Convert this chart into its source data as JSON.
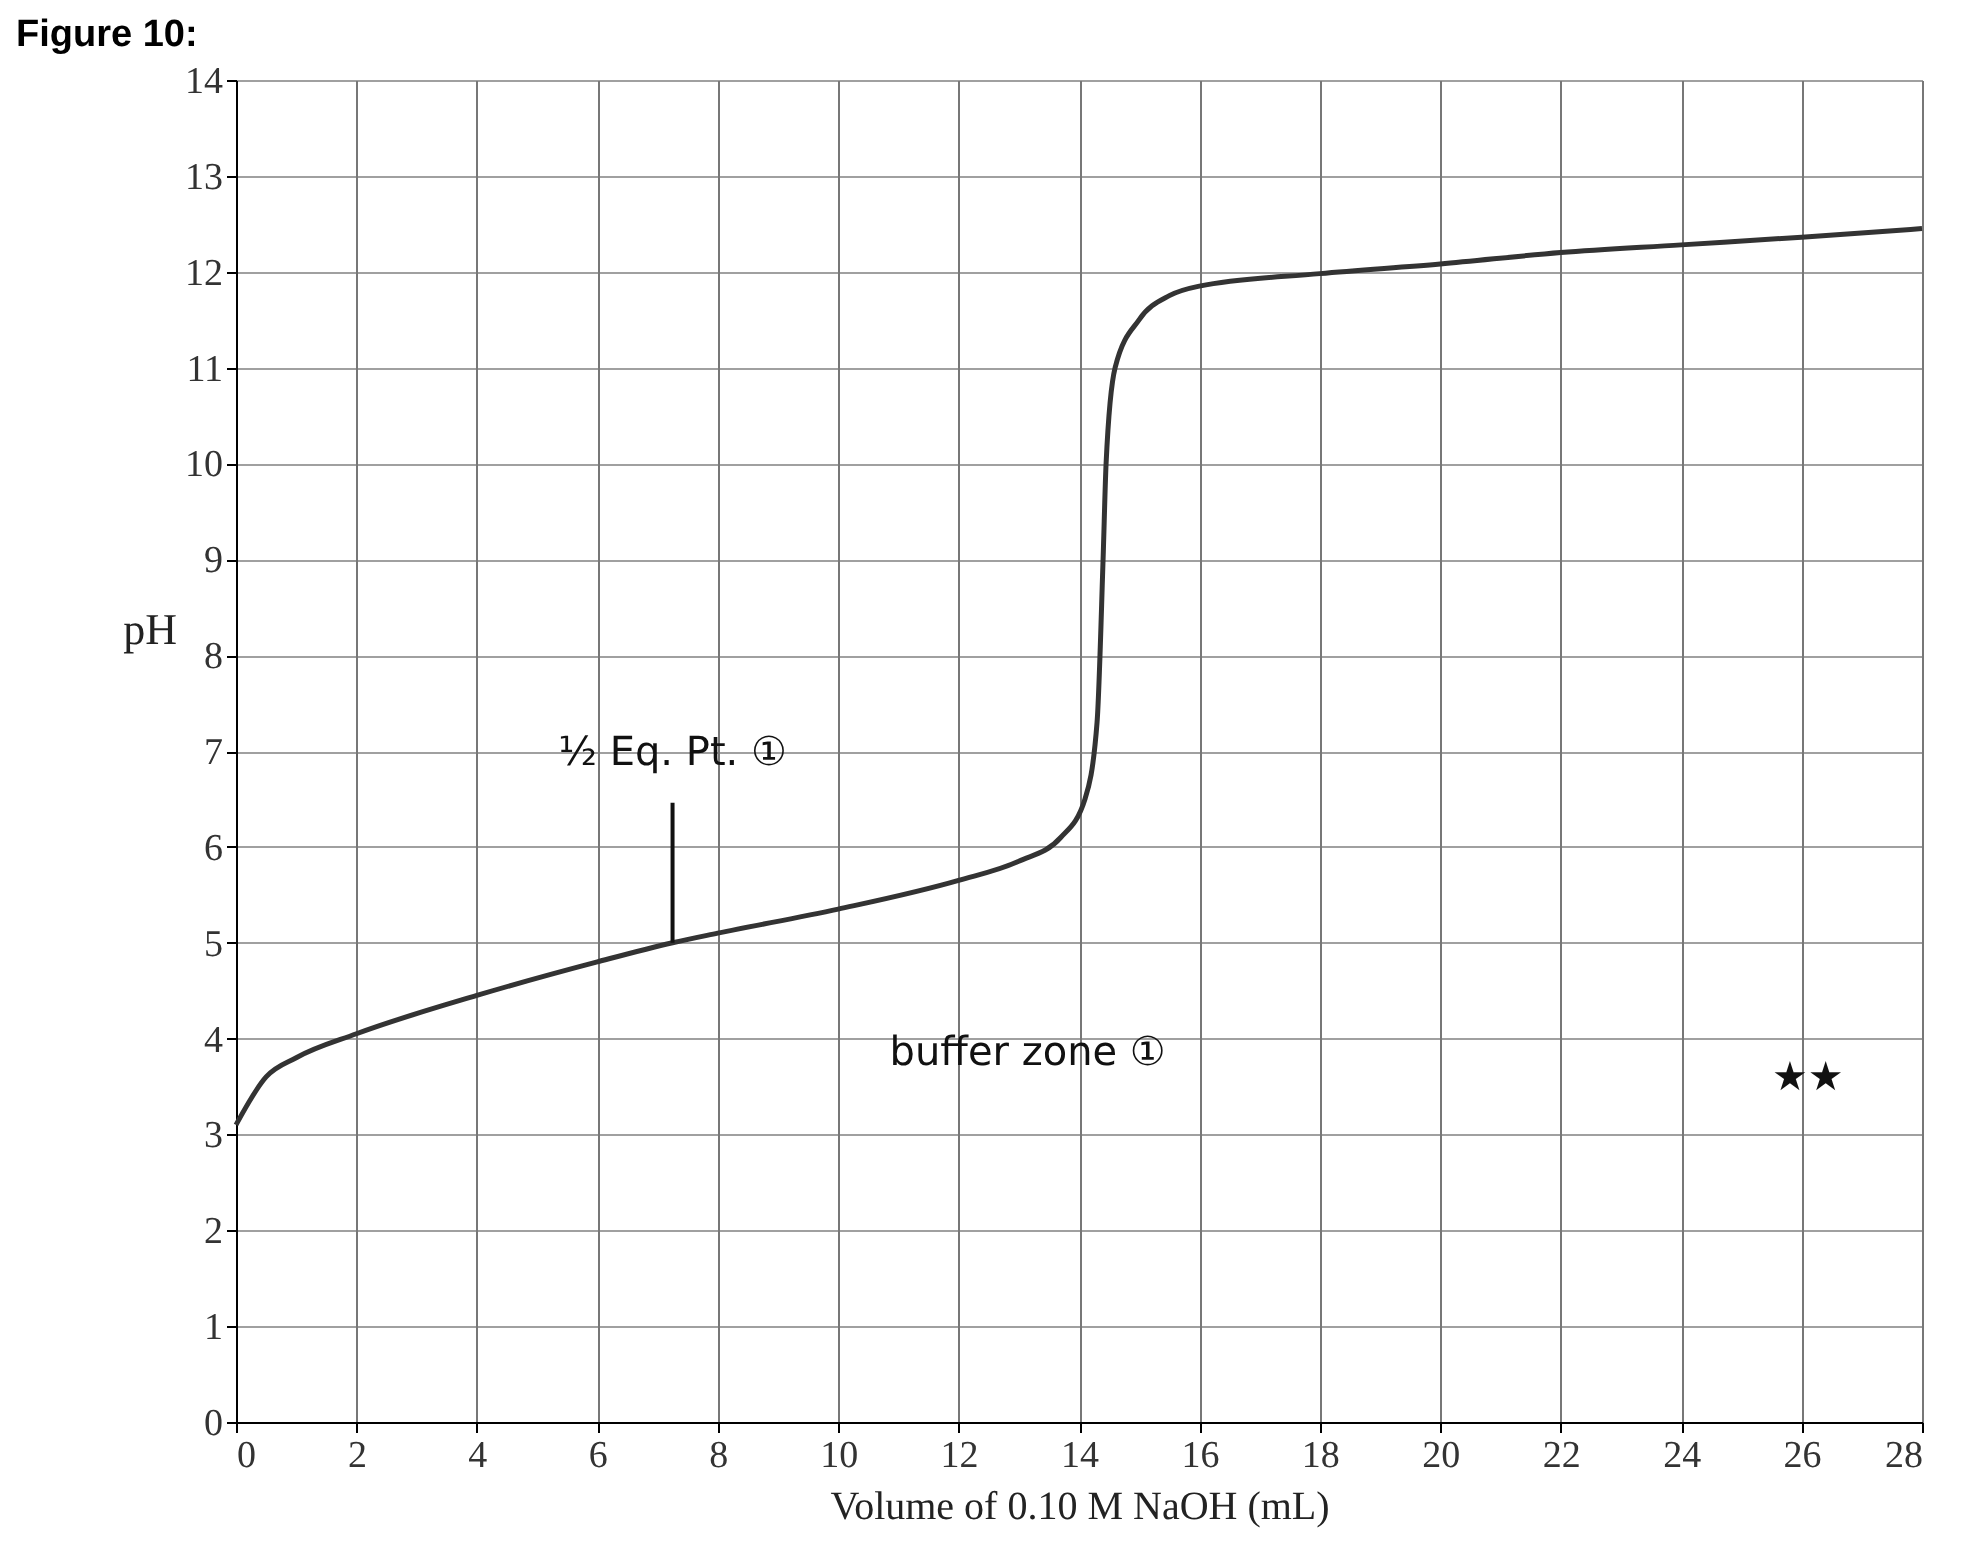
{
  "chart_data": {
    "type": "line",
    "title": "Figure 10:",
    "xlabel": "Volume of 0.10 M NaOH (mL)",
    "ylabel": "pH",
    "series": [
      {
        "color": "#333333",
        "x": [
          0,
          0.5,
          1,
          2,
          4,
          6,
          7.25,
          8,
          10,
          12,
          13,
          13.7,
          14.1,
          14.3,
          14.4,
          14.45,
          14.6,
          15,
          15.5,
          16,
          18,
          20,
          22,
          24,
          26,
          28
        ],
        "values": [
          3.1,
          3.6,
          3.8,
          4.05,
          4.45,
          4.8,
          5.0,
          5.1,
          5.35,
          5.65,
          5.85,
          6.1,
          6.5,
          7.3,
          9,
          10,
          11,
          11.5,
          11.75,
          11.85,
          11.98,
          12.08,
          12.2,
          12.28,
          12.36,
          12.45
        ]
      }
    ],
    "xlim": [
      0,
      28
    ],
    "ylim": [
      0,
      14
    ],
    "xticks": [
      0,
      2,
      4,
      6,
      8,
      10,
      12,
      14,
      16,
      18,
      20,
      22,
      24,
      26,
      28
    ],
    "yticks": [
      0,
      1,
      2,
      3,
      4,
      5,
      6,
      7,
      8,
      9,
      10,
      11,
      12,
      13,
      14
    ],
    "grid": true,
    "marker": "none",
    "line_style": "solid",
    "annotations": [
      {
        "text": "½ Eq. Pt. ①",
        "x": 7.25,
        "y": 5.0
      },
      "buffer zone ①",
      "★★"
    ]
  }
}
